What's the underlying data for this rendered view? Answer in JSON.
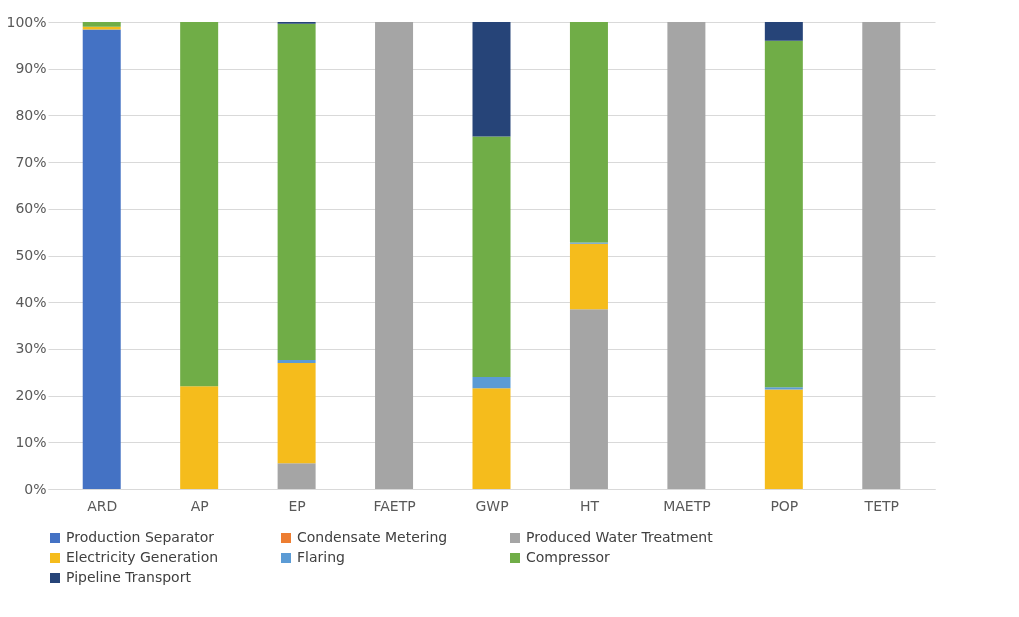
{
  "chart_data": {
    "type": "bar",
    "stacked": true,
    "categories": [
      "ARD",
      "AP",
      "EP",
      "FAETP",
      "GWP",
      "HT",
      "MAETP",
      "POP",
      "TETP"
    ],
    "series": [
      {
        "name": "Production Separator",
        "color": "#4472c4",
        "values": [
          98.4,
          0,
          0,
          0,
          0,
          0,
          0,
          0,
          0
        ]
      },
      {
        "name": "Condensate Metering",
        "color": "#ed7d31",
        "values": [
          0,
          0,
          0,
          0,
          0,
          0,
          0,
          0,
          0
        ]
      },
      {
        "name": "Produced Water Treatment",
        "color": "#a5a5a5",
        "values": [
          0,
          0,
          5.5,
          100,
          0,
          38.5,
          100,
          0,
          100
        ]
      },
      {
        "name": "Electricity Generation",
        "color": "#f5bc1c",
        "values": [
          0.6,
          22,
          21.5,
          0,
          21.6,
          14,
          0,
          21.3,
          0
        ]
      },
      {
        "name": "Flaring",
        "color": "#5b9bd5",
        "values": [
          0,
          0,
          0.6,
          0,
          2.4,
          0.3,
          0,
          0.5,
          0
        ]
      },
      {
        "name": "Compressor",
        "color": "#70ad47",
        "values": [
          1.0,
          78,
          72,
          0,
          51.5,
          47.2,
          0,
          74.2,
          0
        ]
      },
      {
        "name": "Pipeline Transport",
        "color": "#264478",
        "values": [
          0,
          0,
          0.4,
          0,
          24.5,
          0,
          0,
          4,
          0
        ]
      }
    ],
    "ylim": [
      0,
      100
    ],
    "yticks": [
      {
        "value": 0,
        "label": "0%"
      },
      {
        "value": 10,
        "label": "10%"
      },
      {
        "value": 20,
        "label": "20%"
      },
      {
        "value": 30,
        "label": "30%"
      },
      {
        "value": 40,
        "label": "40%"
      },
      {
        "value": 50,
        "label": "50%"
      },
      {
        "value": 60,
        "label": "60%"
      },
      {
        "value": 70,
        "label": "70%"
      },
      {
        "value": 80,
        "label": "80%"
      },
      {
        "value": 90,
        "label": "90%"
      },
      {
        "value": 100,
        "label": "100%"
      }
    ],
    "grid": "y",
    "legend": "bottom"
  }
}
